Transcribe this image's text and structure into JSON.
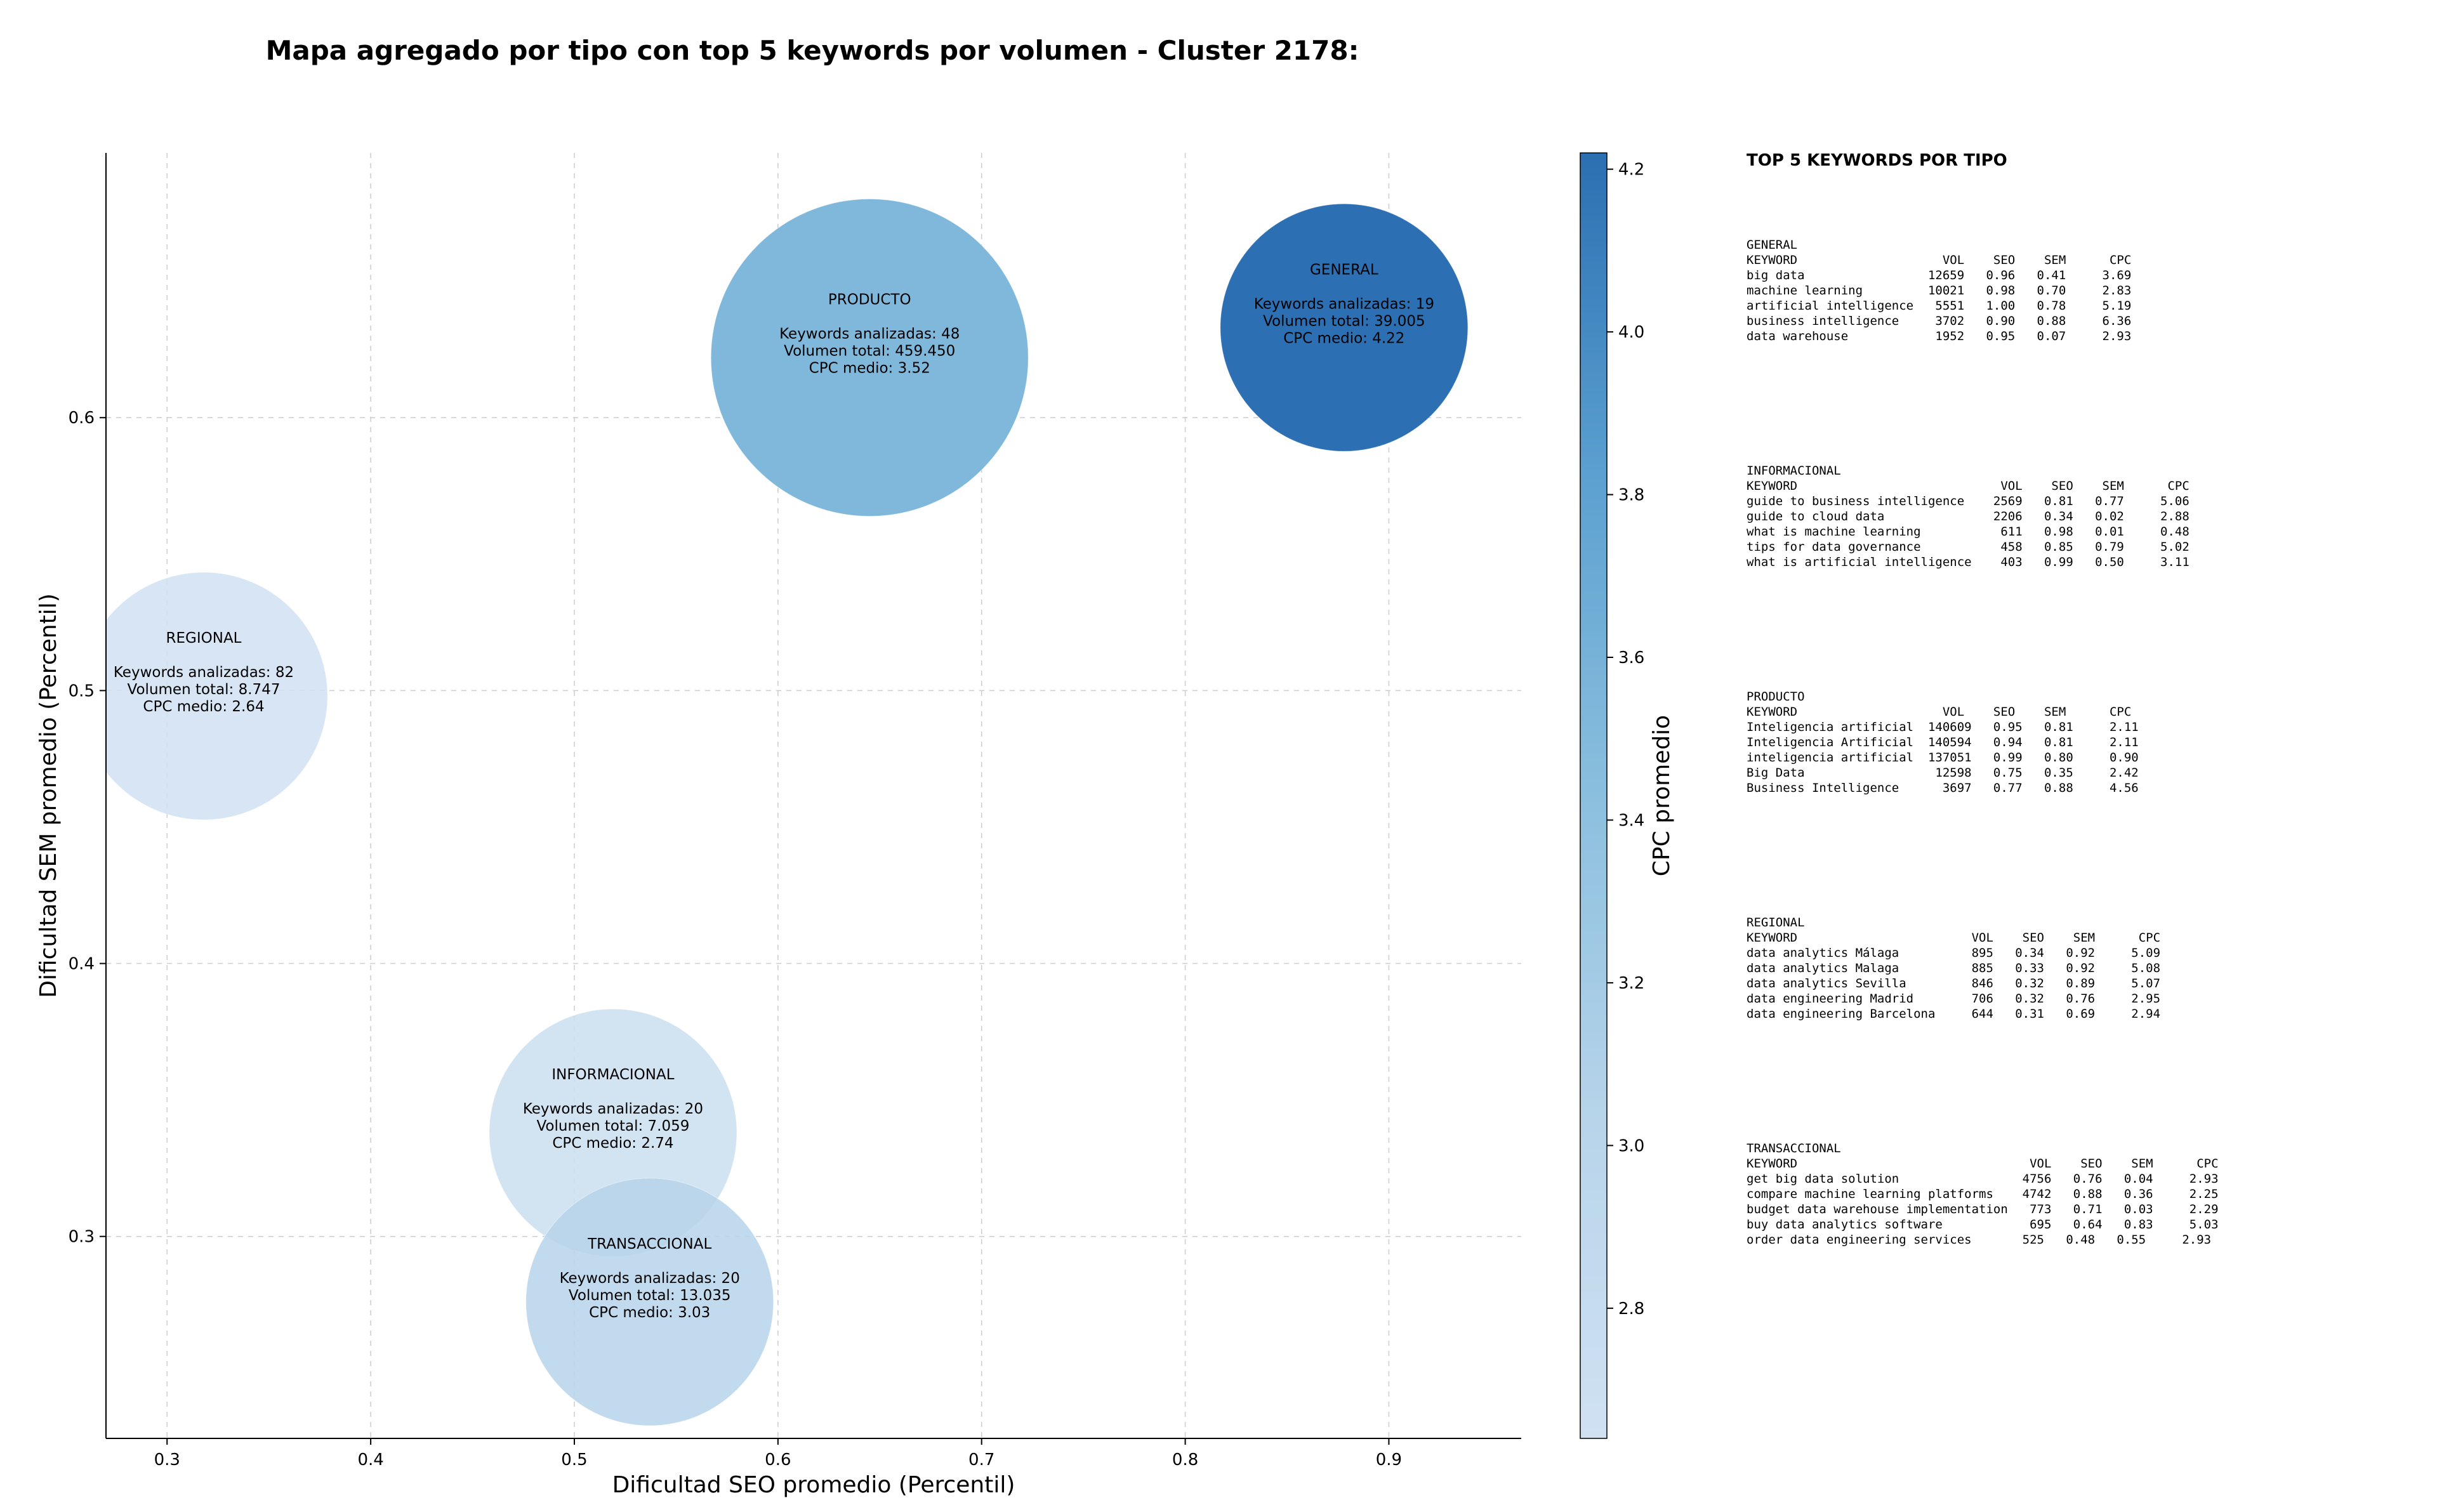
{
  "title": "Mapa agregado por tipo con top 5 keywords por volumen - Cluster 2178:",
  "chart_data": {
    "type": "scatter",
    "subtype": "bubble",
    "xlabel": "Dificultad SEO promedio (Percentil)",
    "ylabel": "Dificultad SEM promedio (Percentil)",
    "xlim": [
      0.27,
      0.965
    ],
    "ylim": [
      0.226,
      0.697
    ],
    "xticks": [
      "0.3",
      "0.4",
      "0.5",
      "0.6",
      "0.7",
      "0.8",
      "0.9"
    ],
    "yticks": [
      "0.3",
      "0.4",
      "0.5",
      "0.6"
    ],
    "grid": true,
    "colorbar": {
      "label": "CPC promedio",
      "range": [
        2.64,
        4.22
      ],
      "ticks": [
        "2.8",
        "3.0",
        "3.2",
        "3.4",
        "3.6",
        "3.8",
        "4.0",
        "4.2"
      ],
      "colormap": "Blues"
    },
    "series": [
      {
        "tipo": "PRODUCTO",
        "x": 0.645,
        "y": 0.622,
        "keywords": 48,
        "volume": 459450,
        "cpc": 3.52,
        "lines": [
          "PRODUCTO",
          "",
          "Keywords analizadas: 48",
          "Volumen total: 459.450",
          "CPC medio: 3.52"
        ]
      },
      {
        "tipo": "GENERAL",
        "x": 0.878,
        "y": 0.633,
        "keywords": 19,
        "volume": 39005,
        "cpc": 4.22,
        "lines": [
          "GENERAL",
          "",
          "Keywords analizadas: 19",
          "Volumen total: 39.005",
          "CPC medio: 4.22"
        ]
      },
      {
        "tipo": "REGIONAL",
        "x": 0.318,
        "y": 0.498,
        "keywords": 82,
        "volume": 8747,
        "cpc": 2.64,
        "lines": [
          "REGIONAL",
          "",
          "Keywords analizadas: 82",
          "Volumen total: 8.747",
          "CPC medio: 2.64"
        ]
      },
      {
        "tipo": "INFORMACIONAL",
        "x": 0.519,
        "y": 0.338,
        "keywords": 20,
        "volume": 7059,
        "cpc": 2.74,
        "lines": [
          "INFORMACIONAL",
          "",
          "Keywords analizadas: 20",
          "Volumen total: 7.059",
          "CPC medio: 2.74"
        ]
      },
      {
        "tipo": "TRANSACCIONAL",
        "x": 0.537,
        "y": 0.276,
        "keywords": 20,
        "volume": 13035,
        "cpc": 3.03,
        "lines": [
          "TRANSACCIONAL",
          "",
          "Keywords analizadas: 20",
          "Volumen total: 13.035",
          "CPC medio: 3.03"
        ]
      }
    ]
  },
  "side_panel": {
    "title": "TOP 5 KEYWORDS POR TIPO",
    "blocks": [
      {
        "lines": [
          "GENERAL",
          "KEYWORD                    VOL    SEO    SEM      CPC",
          "big data                 12659   0.96   0.41     3.69",
          "machine learning         10021   0.98   0.70     2.83",
          "artificial intelligence   5551   1.00   0.78     5.19",
          "business intelligence     3702   0.90   0.88     6.36",
          "data warehouse            1952   0.95   0.07     2.93"
        ]
      },
      {
        "lines": [
          "INFORMACIONAL",
          "KEYWORD                            VOL    SEO    SEM      CPC",
          "guide to business intelligence    2569   0.81   0.77     5.06",
          "guide to cloud data               2206   0.34   0.02     2.88",
          "what is machine learning           611   0.98   0.01     0.48",
          "tips for data governance           458   0.85   0.79     5.02",
          "what is artificial intelligence    403   0.99   0.50     3.11"
        ]
      },
      {
        "lines": [
          "PRODUCTO",
          "KEYWORD                    VOL    SEO    SEM      CPC",
          "Inteligencia artificial  140609   0.95   0.81     2.11",
          "Inteligencia Artificial  140594   0.94   0.81     2.11",
          "inteligencia artificial  137051   0.99   0.80     0.90",
          "Big Data                  12598   0.75   0.35     2.42",
          "Business Intelligence      3697   0.77   0.88     4.56"
        ]
      },
      {
        "lines": [
          "REGIONAL",
          "KEYWORD                        VOL    SEO    SEM      CPC",
          "data analytics Málaga          895   0.34   0.92     5.09",
          "data analytics Malaga          885   0.33   0.92     5.08",
          "data analytics Sevilla         846   0.32   0.89     5.07",
          "data engineering Madrid        706   0.32   0.76     2.95",
          "data engineering Barcelona     644   0.31   0.69     2.94"
        ]
      },
      {
        "lines": [
          "TRANSACCIONAL",
          "KEYWORD                                VOL    SEO    SEM      CPC",
          "get big data solution                 4756   0.76   0.04     2.93",
          "compare machine learning platforms    4742   0.88   0.36     2.25",
          "budget data warehouse implementation   773   0.71   0.03     2.29",
          "buy data analytics software            695   0.64   0.83     5.03",
          "order data engineering services       525   0.48   0.55     2.93"
        ]
      }
    ]
  }
}
